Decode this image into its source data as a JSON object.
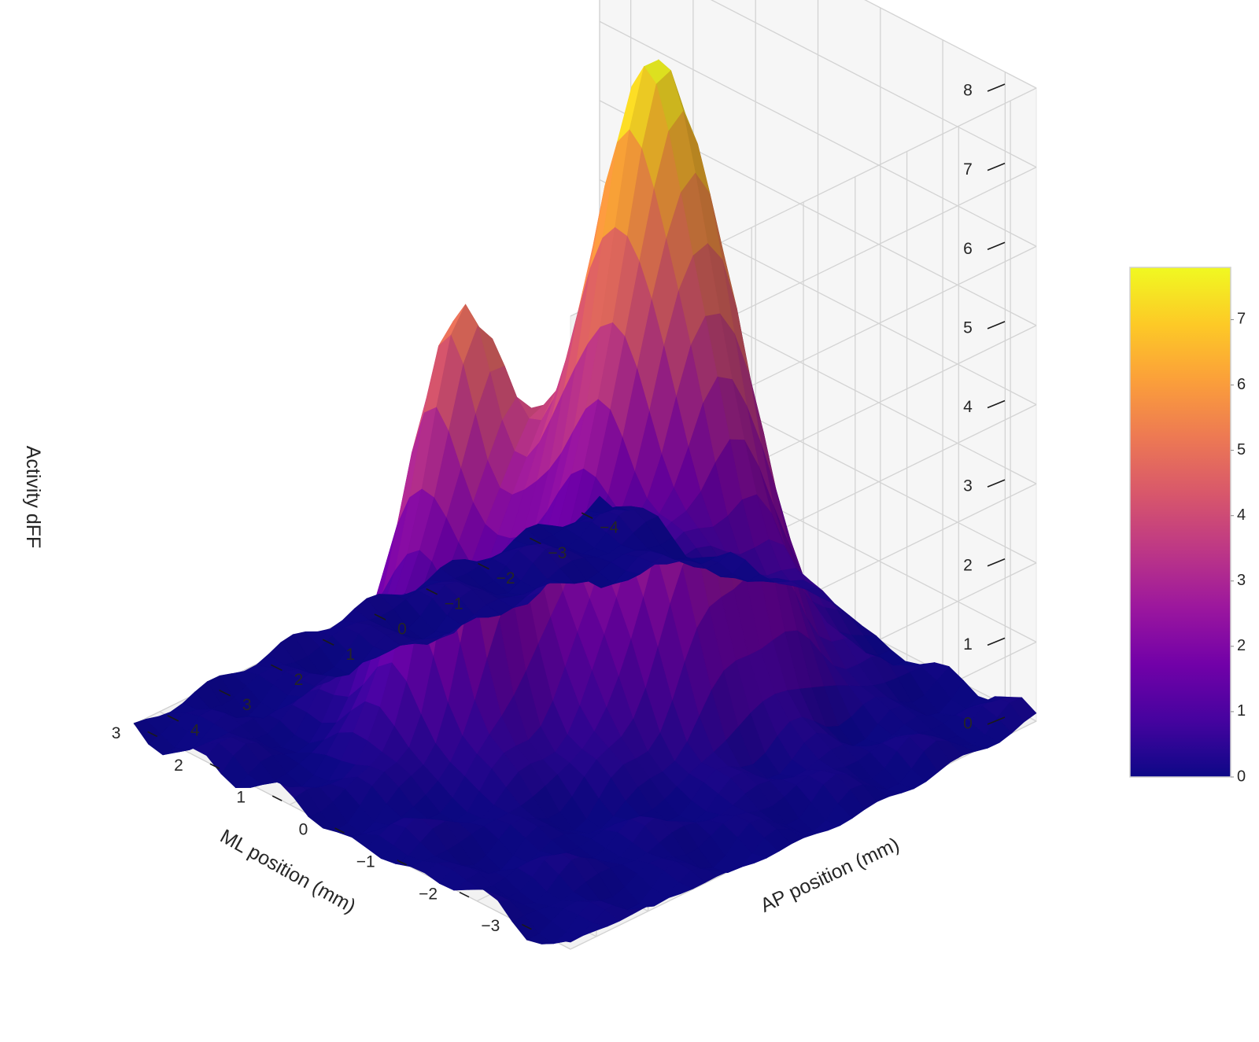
{
  "chart_data": {
    "type": "surface",
    "title": "",
    "xlabel": "ML position (mm)",
    "ylabel": "AP position (mm)",
    "zlabel": "Activity dFF",
    "xlim": [
      -3.5,
      3.5
    ],
    "ylim": [
      -4.5,
      4.5
    ],
    "zlim": [
      0,
      8
    ],
    "x_ticks": [
      "−3",
      "−2",
      "−1",
      "0",
      "1",
      "2",
      "3"
    ],
    "x_tick_values": [
      -3,
      -2,
      -1,
      0,
      1,
      2,
      3
    ],
    "y_ticks": [
      "−4",
      "−3",
      "−2",
      "−1",
      "0",
      "1",
      "2",
      "3",
      "4"
    ],
    "y_tick_values": [
      -4,
      -3,
      -2,
      -1,
      0,
      1,
      2,
      3,
      4
    ],
    "z_ticks": [
      "0",
      "1",
      "2",
      "3",
      "4",
      "5",
      "6",
      "7",
      "8"
    ],
    "z_tick_values": [
      0,
      1,
      2,
      3,
      4,
      5,
      6,
      7,
      8
    ],
    "grid": true,
    "colormap": "plasma",
    "colormap_stops": [
      "#0d0887",
      "#46039f",
      "#7201a8",
      "#9c179e",
      "#bd3786",
      "#d8576b",
      "#ed7953",
      "#fb9f3a",
      "#fdca26",
      "#f0f921"
    ],
    "color_range": [
      0,
      7.8
    ],
    "colorbar": {
      "placement": "right",
      "ticks": [
        "0",
        "1",
        "2",
        "3",
        "4",
        "5",
        "6",
        "7"
      ],
      "tick_values": [
        0,
        1,
        2,
        3,
        4,
        5,
        6,
        7
      ]
    },
    "surface_components": [
      {
        "kind": "gaussian-peak",
        "amplitude": 7.8,
        "center_ml": 0,
        "center_ap": -1.4,
        "sigma_ml": 0.85,
        "sigma_ap": 1.1
      },
      {
        "kind": "gaussian-peak",
        "amplitude": 5.0,
        "center_ml": 0.9,
        "center_ap": 1.3,
        "sigma_ml": 0.65,
        "sigma_ap": 0.75
      }
    ],
    "surface_grid": {
      "ml_range": [
        -3.5,
        3.5
      ],
      "ap_range": [
        -4.5,
        4.5
      ],
      "ml_steps": 30,
      "ap_steps": 38
    },
    "noise_amplitude": 0.15
  }
}
